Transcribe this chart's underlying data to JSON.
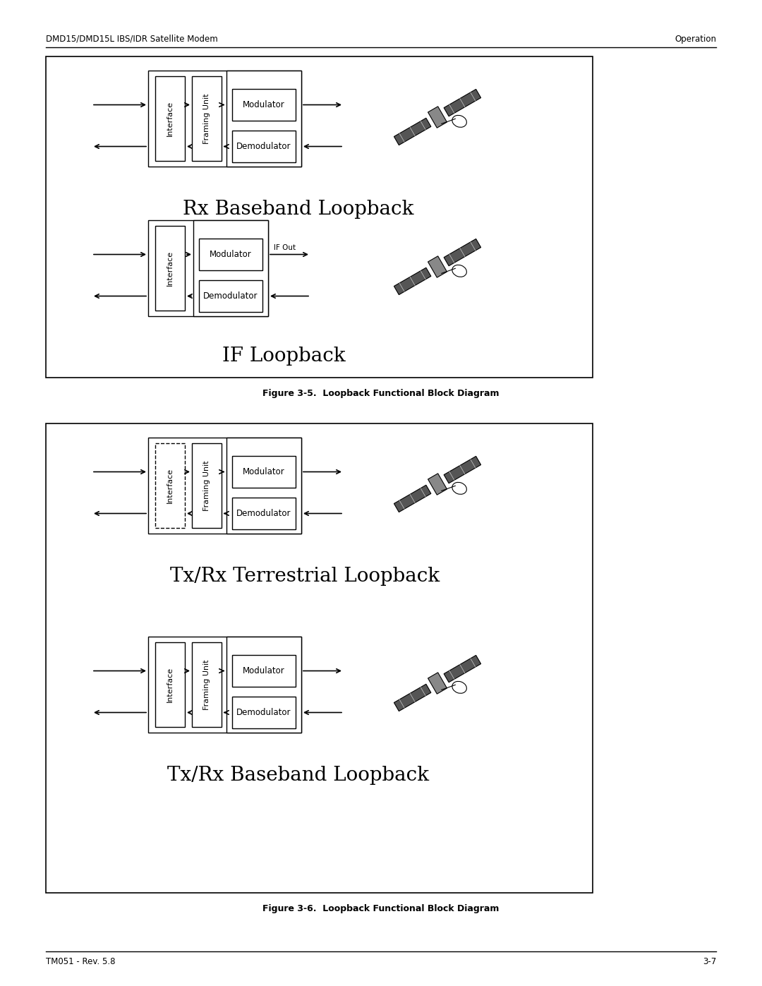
{
  "page_width": 10.8,
  "page_height": 13.97,
  "bg_color": "#ffffff",
  "header_left": "DMD15/DMD15L IBS/IDR Satellite Modem",
  "header_right": "Operation",
  "footer_left": "TM051 - Rev. 5.8",
  "footer_right": "3-7",
  "fig1_caption": "Figure 3-5.  Loopback Functional Block Diagram",
  "fig2_caption": "Figure 3-6.  Loopback Functional Block Diagram",
  "diagram1_title": "Rx Baseband Loopback",
  "diagram2_title": "IF Loopback",
  "diagram3_title": "Tx/Rx Terrestrial Loopback",
  "diagram4_title": "Tx/Rx Baseband Loopback"
}
